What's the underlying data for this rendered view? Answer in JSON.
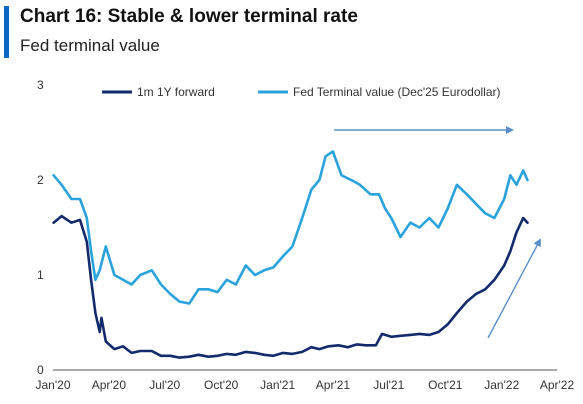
{
  "header": {
    "title": "Chart 16: Stable & lower terminal rate",
    "subtitle": "Fed terminal value"
  },
  "colors": {
    "accent": "#0b66c3",
    "series_1m1y": "#132a6b",
    "series_terminal": "#2aa3dc"
  },
  "chart_data": {
    "type": "line",
    "title": "Chart 16: Stable & lower terminal rate",
    "subtitle": "Fed terminal value",
    "xlabel": "",
    "ylabel": "",
    "x_ticks": [
      "Jan'20",
      "Apr'20",
      "Jul'20",
      "Oct'20",
      "Jan'21",
      "Apr'21",
      "Jul'21",
      "Oct'21",
      "Jan'22",
      "Apr'22"
    ],
    "x_range": [
      "2020-01",
      "2022-04"
    ],
    "y_ticks": [
      "0",
      "1",
      "2",
      "3"
    ],
    "ylim": [
      0,
      3
    ],
    "grid": false,
    "legend_position": "top",
    "series": [
      {
        "name": "1m 1Y forward",
        "color": "#132a6b",
        "points": [
          [
            "2020-01-02",
            1.55
          ],
          [
            "2020-01-15",
            1.62
          ],
          [
            "2020-01-31",
            1.55
          ],
          [
            "2020-02-14",
            1.58
          ],
          [
            "2020-02-25",
            1.35
          ],
          [
            "2020-03-03",
            0.95
          ],
          [
            "2020-03-10",
            0.6
          ],
          [
            "2020-03-17",
            0.4
          ],
          [
            "2020-03-20",
            0.55
          ],
          [
            "2020-03-27",
            0.3
          ],
          [
            "2020-04-10",
            0.22
          ],
          [
            "2020-04-24",
            0.25
          ],
          [
            "2020-05-08",
            0.18
          ],
          [
            "2020-05-22",
            0.2
          ],
          [
            "2020-06-10",
            0.2
          ],
          [
            "2020-06-25",
            0.15
          ],
          [
            "2020-07-10",
            0.15
          ],
          [
            "2020-07-25",
            0.13
          ],
          [
            "2020-08-10",
            0.14
          ],
          [
            "2020-08-25",
            0.16
          ],
          [
            "2020-09-10",
            0.14
          ],
          [
            "2020-09-25",
            0.15
          ],
          [
            "2020-10-10",
            0.17
          ],
          [
            "2020-10-25",
            0.16
          ],
          [
            "2020-11-10",
            0.19
          ],
          [
            "2020-11-25",
            0.18
          ],
          [
            "2020-12-10",
            0.16
          ],
          [
            "2020-12-25",
            0.15
          ],
          [
            "2021-01-10",
            0.18
          ],
          [
            "2021-01-25",
            0.17
          ],
          [
            "2021-02-10",
            0.19
          ],
          [
            "2021-02-25",
            0.24
          ],
          [
            "2021-03-10",
            0.22
          ],
          [
            "2021-03-25",
            0.25
          ],
          [
            "2021-04-10",
            0.26
          ],
          [
            "2021-04-25",
            0.24
          ],
          [
            "2021-05-10",
            0.27
          ],
          [
            "2021-05-25",
            0.26
          ],
          [
            "2021-06-10",
            0.26
          ],
          [
            "2021-06-20",
            0.38
          ],
          [
            "2021-07-05",
            0.35
          ],
          [
            "2021-07-20",
            0.36
          ],
          [
            "2021-08-05",
            0.37
          ],
          [
            "2021-08-20",
            0.38
          ],
          [
            "2021-09-05",
            0.37
          ],
          [
            "2021-09-20",
            0.4
          ],
          [
            "2021-10-05",
            0.48
          ],
          [
            "2021-10-20",
            0.6
          ],
          [
            "2021-11-05",
            0.72
          ],
          [
            "2021-11-20",
            0.8
          ],
          [
            "2021-12-05",
            0.85
          ],
          [
            "2021-12-20",
            0.95
          ],
          [
            "2022-01-05",
            1.1
          ],
          [
            "2022-01-15",
            1.25
          ],
          [
            "2022-01-25",
            1.45
          ],
          [
            "2022-02-05",
            1.6
          ],
          [
            "2022-02-12",
            1.55
          ]
        ]
      },
      {
        "name": "Fed Terminal value (Dec'25 Eurodollar)",
        "color": "#2aa3dc",
        "points": [
          [
            "2020-01-02",
            2.05
          ],
          [
            "2020-01-15",
            1.95
          ],
          [
            "2020-01-31",
            1.8
          ],
          [
            "2020-02-14",
            1.8
          ],
          [
            "2020-02-25",
            1.6
          ],
          [
            "2020-03-03",
            1.25
          ],
          [
            "2020-03-10",
            0.95
          ],
          [
            "2020-03-17",
            1.05
          ],
          [
            "2020-03-27",
            1.3
          ],
          [
            "2020-04-10",
            1.0
          ],
          [
            "2020-04-24",
            0.95
          ],
          [
            "2020-05-08",
            0.9
          ],
          [
            "2020-05-22",
            1.0
          ],
          [
            "2020-06-10",
            1.05
          ],
          [
            "2020-06-25",
            0.9
          ],
          [
            "2020-07-10",
            0.8
          ],
          [
            "2020-07-25",
            0.72
          ],
          [
            "2020-08-10",
            0.7
          ],
          [
            "2020-08-25",
            0.85
          ],
          [
            "2020-09-10",
            0.85
          ],
          [
            "2020-09-25",
            0.82
          ],
          [
            "2020-10-10",
            0.95
          ],
          [
            "2020-10-25",
            0.9
          ],
          [
            "2020-11-10",
            1.1
          ],
          [
            "2020-11-25",
            1.0
          ],
          [
            "2020-12-10",
            1.05
          ],
          [
            "2020-12-25",
            1.08
          ],
          [
            "2021-01-10",
            1.2
          ],
          [
            "2021-01-25",
            1.3
          ],
          [
            "2021-02-10",
            1.6
          ],
          [
            "2021-02-25",
            1.9
          ],
          [
            "2021-03-10",
            2.0
          ],
          [
            "2021-03-20",
            2.25
          ],
          [
            "2021-04-01",
            2.3
          ],
          [
            "2021-04-15",
            2.05
          ],
          [
            "2021-05-01",
            2.0
          ],
          [
            "2021-05-15",
            1.95
          ],
          [
            "2021-06-01",
            1.85
          ],
          [
            "2021-06-15",
            1.85
          ],
          [
            "2021-06-25",
            1.7
          ],
          [
            "2021-07-05",
            1.6
          ],
          [
            "2021-07-20",
            1.4
          ],
          [
            "2021-08-05",
            1.55
          ],
          [
            "2021-08-20",
            1.5
          ],
          [
            "2021-09-05",
            1.6
          ],
          [
            "2021-09-20",
            1.5
          ],
          [
            "2021-10-05",
            1.7
          ],
          [
            "2021-10-20",
            1.95
          ],
          [
            "2021-11-05",
            1.85
          ],
          [
            "2021-11-20",
            1.75
          ],
          [
            "2021-12-05",
            1.65
          ],
          [
            "2021-12-20",
            1.6
          ],
          [
            "2022-01-05",
            1.8
          ],
          [
            "2022-01-15",
            2.05
          ],
          [
            "2022-01-25",
            1.95
          ],
          [
            "2022-02-05",
            2.1
          ],
          [
            "2022-02-12",
            2.0
          ]
        ]
      }
    ]
  }
}
